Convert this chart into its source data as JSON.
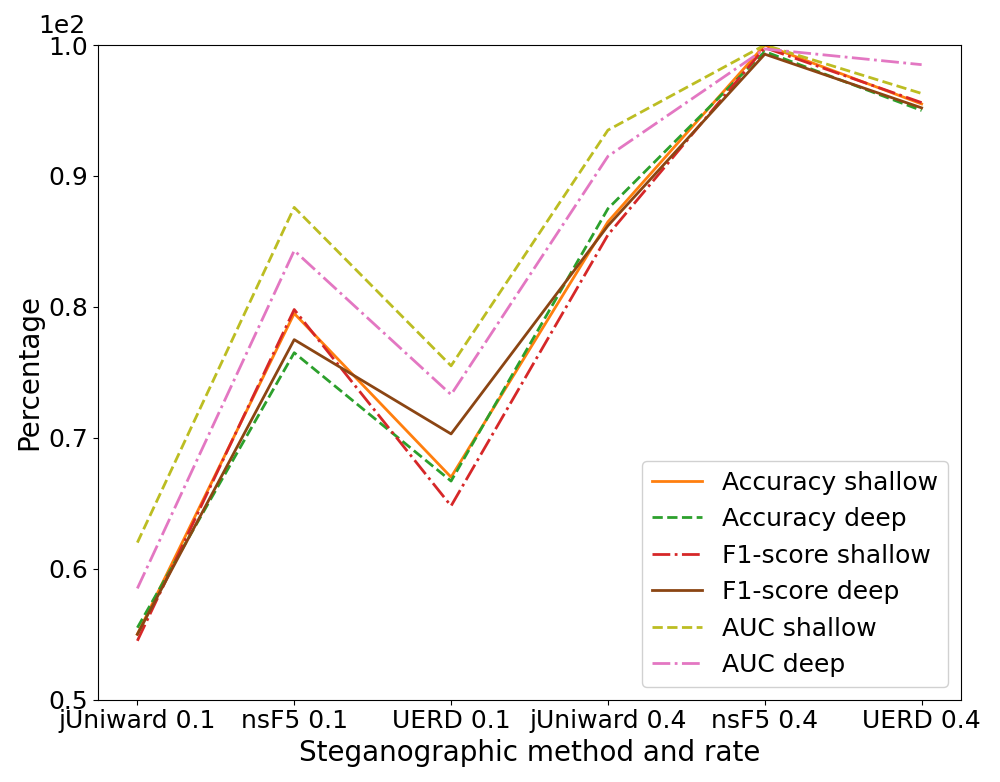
{
  "x_labels": [
    "jUniward 0.1",
    "nsF5 0.1",
    "UERD 0.1",
    "jUniward 0.4",
    "nsF5 0.4",
    "UERD 0.4"
  ],
  "series": [
    {
      "label": "Accuracy shallow",
      "color": "#ff7f0e",
      "linestyle": "-",
      "linewidth": 2.0,
      "values": [
        55.0,
        79.5,
        67.0,
        86.5,
        100.0,
        95.5
      ]
    },
    {
      "label": "Accuracy deep",
      "color": "#2ca02c",
      "linestyle": "--",
      "linewidth": 2.0,
      "values": [
        55.5,
        76.5,
        66.7,
        87.5,
        99.5,
        95.0
      ]
    },
    {
      "label": "F1-score shallow",
      "color": "#d62728",
      "linestyle": "-.",
      "linewidth": 2.0,
      "values": [
        54.5,
        79.8,
        64.8,
        85.5,
        99.8,
        95.6
      ]
    },
    {
      "label": "F1-score deep",
      "color": "#8B4513",
      "linestyle": "-",
      "linewidth": 2.0,
      "values": [
        55.0,
        77.5,
        70.3,
        86.2,
        99.3,
        95.2
      ]
    },
    {
      "label": "AUC shallow",
      "color": "#bcbd22",
      "linestyle": "--",
      "linewidth": 2.0,
      "values": [
        62.0,
        87.6,
        75.5,
        93.5,
        100.0,
        96.3
      ]
    },
    {
      "label": "AUC deep",
      "color": "#e377c2",
      "linestyle": "-.",
      "linewidth": 2.0,
      "values": [
        58.5,
        84.3,
        73.3,
        91.5,
        99.7,
        98.5
      ]
    }
  ],
  "xlabel": "Steganographic method and rate",
  "ylabel": "Percentage",
  "ylim": [
    50.0,
    100.0
  ],
  "yticks": [
    50.0,
    60.0,
    70.0,
    80.0,
    90.0,
    100.0
  ],
  "ytick_labels": [
    "0.5",
    "0.6",
    "0.7",
    "0.8",
    "0.9",
    "1.0"
  ],
  "legend_loc": "lower right",
  "figsize": [
    10.0,
    7.82
  ],
  "dpi": 100,
  "tick_fontsize": 18,
  "label_fontsize": 20,
  "legend_fontsize": 18
}
